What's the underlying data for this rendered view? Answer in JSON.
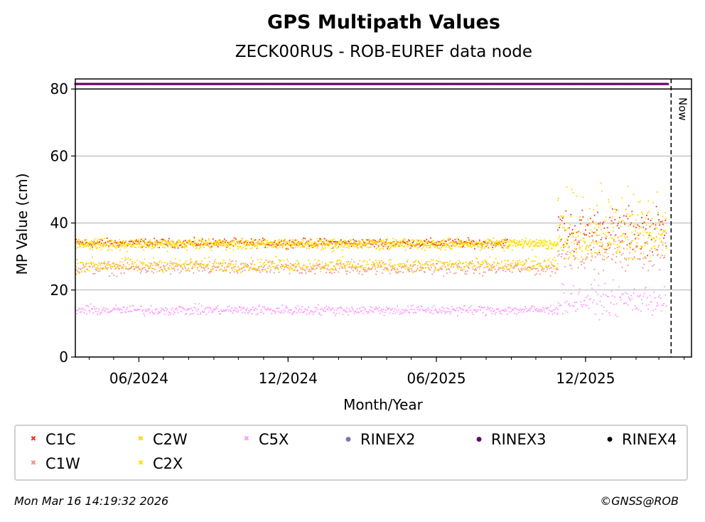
{
  "title": "GPS Multipath Values",
  "subtitle": "ZECK00RUS - ROB-EUREF data node",
  "footer": {
    "timestamp": "Mon Mar 16 14:19:32 2026",
    "credit": "©GNSS@ROB"
  },
  "chart_data": {
    "type": "scatter",
    "title": "GPS Multipath Values",
    "subtitle": "ZECK00RUS - ROB-EUREF data node",
    "xlabel": "Month/Year",
    "ylabel": "MP Value (cm)",
    "x_range": [
      "2024-03-15",
      "2026-04-10"
    ],
    "ylim": [
      0,
      83
    ],
    "y_ticks": [
      0,
      20,
      40,
      60,
      80
    ],
    "x_ticks": [
      {
        "date": "2024-06-01",
        "label": "06/2024"
      },
      {
        "date": "2024-12-01",
        "label": "12/2024"
      },
      {
        "date": "2025-06-01",
        "label": "06/2025"
      },
      {
        "date": "2025-12-01",
        "label": "12/2025"
      }
    ],
    "grid": "horizontal",
    "now_date": "2026-03-16",
    "now_label": "Now",
    "legend_position": "bottom",
    "series": [
      {
        "name": "C1C",
        "color": "#ee3322",
        "marker": "x",
        "segments": [
          {
            "start": "2024-03-15",
            "end": "2025-08-28",
            "mean": 34,
            "spread": 0.8
          },
          {
            "start": "2025-10-28",
            "end": "2026-03-10",
            "mean": 38,
            "spread": 4
          }
        ]
      },
      {
        "name": "C1W",
        "color": "#f2938a",
        "marker": "x",
        "segments": [
          {
            "start": "2024-03-15",
            "end": "2025-10-28",
            "mean": 26.5,
            "spread": 1.2
          },
          {
            "start": "2025-10-28",
            "end": "2026-03-10",
            "mean": 31,
            "spread": 3
          }
        ]
      },
      {
        "name": "C2W",
        "color": "#ffd700",
        "marker": "x",
        "segments": [
          {
            "start": "2024-03-15",
            "end": "2025-10-28",
            "mean": 33.5,
            "spread": 1
          },
          {
            "start": "2024-03-15",
            "end": "2025-10-28",
            "mean": 27.5,
            "spread": 1.2
          },
          {
            "start": "2025-10-28",
            "end": "2026-03-10",
            "mean": 40,
            "spread": 6
          }
        ]
      },
      {
        "name": "C2X",
        "color": "#ffe200",
        "marker": "x",
        "segments": [
          {
            "start": "2024-03-15",
            "end": "2025-10-28",
            "mean": 34,
            "spread": 0.8
          },
          {
            "start": "2025-10-28",
            "end": "2026-03-10",
            "mean": 34,
            "spread": 3
          }
        ]
      },
      {
        "name": "C5X",
        "color": "#ff99ff",
        "marker": "x",
        "segments": [
          {
            "start": "2024-03-15",
            "end": "2025-10-28",
            "mean": 14,
            "spread": 0.9
          },
          {
            "start": "2025-10-28",
            "end": "2026-03-10",
            "mean": 17,
            "spread": 2.8
          }
        ]
      },
      {
        "name": "RINEX2",
        "color": "#7777bb",
        "marker": "o",
        "segments": []
      },
      {
        "name": "RINEX3",
        "color": "#660066",
        "marker": "o",
        "segments": [
          {
            "start": "2024-03-15",
            "end": "2026-03-12",
            "mean": 81.5,
            "spread": 0
          }
        ]
      },
      {
        "name": "RINEX4",
        "color": "#110011",
        "marker": "o",
        "segments": []
      }
    ]
  },
  "legend": [
    {
      "label": "C1C",
      "color": "#ee3322",
      "marker": "x"
    },
    {
      "label": "C2W",
      "color": "#ffd700",
      "marker": "x"
    },
    {
      "label": "C5X",
      "color": "#ff99ff",
      "marker": "x"
    },
    {
      "label": "RINEX2",
      "color": "#7777bb",
      "marker": "o"
    },
    {
      "label": "RINEX3",
      "color": "#660066",
      "marker": "o"
    },
    {
      "label": "RINEX4",
      "color": "#110011",
      "marker": "o"
    },
    {
      "label": "C1W",
      "color": "#f2938a",
      "marker": "x"
    },
    {
      "label": "C2X",
      "color": "#ffe200",
      "marker": "x"
    }
  ]
}
